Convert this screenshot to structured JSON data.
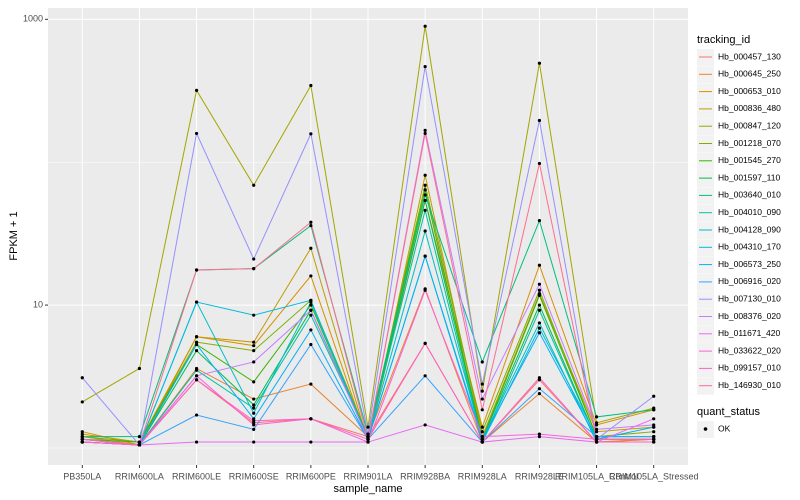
{
  "chart_data": {
    "type": "line",
    "x_label": "sample_name",
    "y_label": "FPKM + 1",
    "categories": [
      "PB350LA",
      "RRIM600LA",
      "RRIM600LE",
      "RRIM600SE",
      "RRIM600PE",
      "RRIM901LA",
      "RRIM928BA",
      "RRIM928LA",
      "RRIM928LE",
      "RRIM105LA_Control",
      "RRIM105LA_Stressed"
    ],
    "log_y": true,
    "grid": true,
    "ylim": [
      0.76,
      1200
    ],
    "yticks": [
      10,
      1000
    ],
    "legend_title": "tracking_id",
    "legend_position": "right",
    "point_legend": {
      "title": "quant_status",
      "labels": [
        "OK"
      ],
      "color": "#000000"
    },
    "series": [
      {
        "name": "Hb_000457_130",
        "color": "#F8766D",
        "values": [
          1.2,
          1.05,
          3.0,
          1.5,
          1.6,
          1.2,
          5.4,
          1.1,
          3.0,
          1.1,
          1.15
        ]
      },
      {
        "name": "Hb_000645_250",
        "color": "#EA8331",
        "values": [
          1.1,
          1.05,
          3.6,
          2.2,
          2.8,
          1.2,
          13,
          1.1,
          2.4,
          1.1,
          1.15
        ]
      },
      {
        "name": "Hb_000653_010",
        "color": "#D89000",
        "values": [
          1.25,
          1.1,
          6.0,
          5.2,
          16,
          1.1,
          54,
          1.4,
          19,
          1.45,
          1.85
        ]
      },
      {
        "name": "Hb_000836_480",
        "color": "#C09B00",
        "values": [
          1.3,
          1.05,
          6.0,
          5.5,
          25,
          1.1,
          81,
          1.2,
          12,
          1.3,
          1.4
        ]
      },
      {
        "name": "Hb_000847_120",
        "color": "#A3A500",
        "values": [
          2.1,
          3.6,
          318,
          69,
          344,
          1.4,
          895,
          2.5,
          493,
          1.5,
          1.9
        ]
      },
      {
        "name": "Hb_001218_070",
        "color": "#7CAE00",
        "values": [
          1.2,
          1.1,
          5.5,
          4.8,
          10.8,
          1.2,
          69,
          1.3,
          12.7,
          1.2,
          1.3
        ]
      },
      {
        "name": "Hb_001545_270",
        "color": "#39B600",
        "values": [
          1.15,
          1.1,
          5.3,
          2.9,
          10,
          1.2,
          64,
          1.15,
          11.7,
          1.2,
          1.2
        ]
      },
      {
        "name": "Hb_001597_110",
        "color": "#00BB4E",
        "values": [
          1.15,
          1.05,
          4.8,
          2.0,
          9.2,
          1.2,
          54,
          1.15,
          10,
          1.15,
          1.15
        ]
      },
      {
        "name": "Hb_003640_010",
        "color": "#00BF7D",
        "values": [
          1.2,
          1.2,
          17.6,
          18,
          36,
          1.25,
          59,
          4.0,
          39,
          1.65,
          1.85
        ]
      },
      {
        "name": "Hb_004010_090",
        "color": "#00C1A3",
        "values": [
          1.15,
          1.05,
          3.5,
          1.9,
          8.5,
          1.2,
          46,
          1.1,
          9.2,
          1.15,
          1.15
        ]
      },
      {
        "name": "Hb_004128_090",
        "color": "#00BFC4",
        "values": [
          1.15,
          1.05,
          10.5,
          1.75,
          10.5,
          1.15,
          33,
          1.15,
          7.5,
          1.1,
          1.1
        ]
      },
      {
        "name": "Hb_004310_170",
        "color": "#00BAE0",
        "values": [
          1.1,
          1.05,
          10.5,
          8.5,
          10.8,
          1.15,
          22,
          1.1,
          6.9,
          1.2,
          1.2
        ]
      },
      {
        "name": "Hb_006573_250",
        "color": "#00B0F6",
        "values": [
          1.1,
          1.05,
          5.3,
          1.6,
          6.7,
          1.15,
          22,
          1.15,
          6.4,
          1.15,
          1.4
        ]
      },
      {
        "name": "Hb_006916_020",
        "color": "#35A2FF",
        "values": [
          1.1,
          1.05,
          1.7,
          1.35,
          5.3,
          1.15,
          3.2,
          1.1,
          2.6,
          1.2,
          1.2
        ]
      },
      {
        "name": "Hb_007130_010",
        "color": "#9590FF",
        "values": [
          3.1,
          1.05,
          159,
          21,
          158,
          1.25,
          467,
          2.8,
          196,
          1.15,
          2.3
        ]
      },
      {
        "name": "Hb_008376_020",
        "color": "#C77CFF",
        "values": [
          1.15,
          1.05,
          3.2,
          4.0,
          9.2,
          1.15,
          167,
          2.2,
          14,
          1.35,
          1.45
        ]
      },
      {
        "name": "Hb_011671_420",
        "color": "#E76BF3",
        "values": [
          1.1,
          1.05,
          1.1,
          1.1,
          1.1,
          1.1,
          1.45,
          1.1,
          1.2,
          1.1,
          1.6
        ]
      },
      {
        "name": "Hb_033622_020",
        "color": "#FA62DB",
        "values": [
          1.1,
          1.05,
          3.2,
          1.45,
          1.6,
          1.1,
          12.7,
          1.2,
          1.25,
          1.15,
          1.15
        ]
      },
      {
        "name": "Hb_099157_010",
        "color": "#FF62BC",
        "values": [
          1.1,
          1.05,
          3.0,
          1.55,
          1.6,
          1.15,
          5.4,
          1.1,
          3.1,
          1.1,
          1.1
        ]
      },
      {
        "name": "Hb_146930_010",
        "color": "#FF6C90",
        "values": [
          1.15,
          1.05,
          17.6,
          18,
          38,
          1.15,
          159,
          1.85,
          98,
          1.15,
          1.15
        ]
      }
    ]
  }
}
